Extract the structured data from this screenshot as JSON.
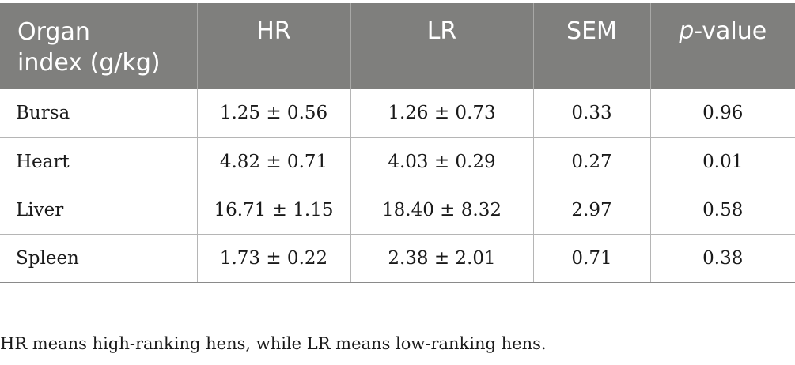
{
  "table": {
    "headers": {
      "organ_line1": "Organ",
      "organ_line2": "index (g/kg)",
      "hr": "HR",
      "lr": "LR",
      "sem": "SEM",
      "p_italic": "p",
      "p_rest": "-value"
    },
    "rows": [
      {
        "organ": "Bursa",
        "hr": "1.25 ± 0.56",
        "lr": "1.26 ± 0.73",
        "sem": "0.33",
        "p": "0.96"
      },
      {
        "organ": "Heart",
        "hr": "4.82 ± 0.71",
        "lr": "4.03 ± 0.29",
        "sem": "0.27",
        "p": "0.01"
      },
      {
        "organ": "Liver",
        "hr": "16.71 ± 1.15",
        "lr": "18.40 ± 8.32",
        "sem": "2.97",
        "p": "0.58"
      },
      {
        "organ": "Spleen",
        "hr": "1.73 ± 0.22",
        "lr": "2.38 ± 2.01",
        "sem": "0.71",
        "p": "0.38"
      }
    ]
  },
  "footnote": "HR means high-ranking hens, while LR means low-ranking hens.",
  "colors": {
    "header_bg": "#7f7f7d",
    "header_text": "#ffffff",
    "body_text": "#1a1a1a",
    "rule": "#b5b5b5"
  }
}
